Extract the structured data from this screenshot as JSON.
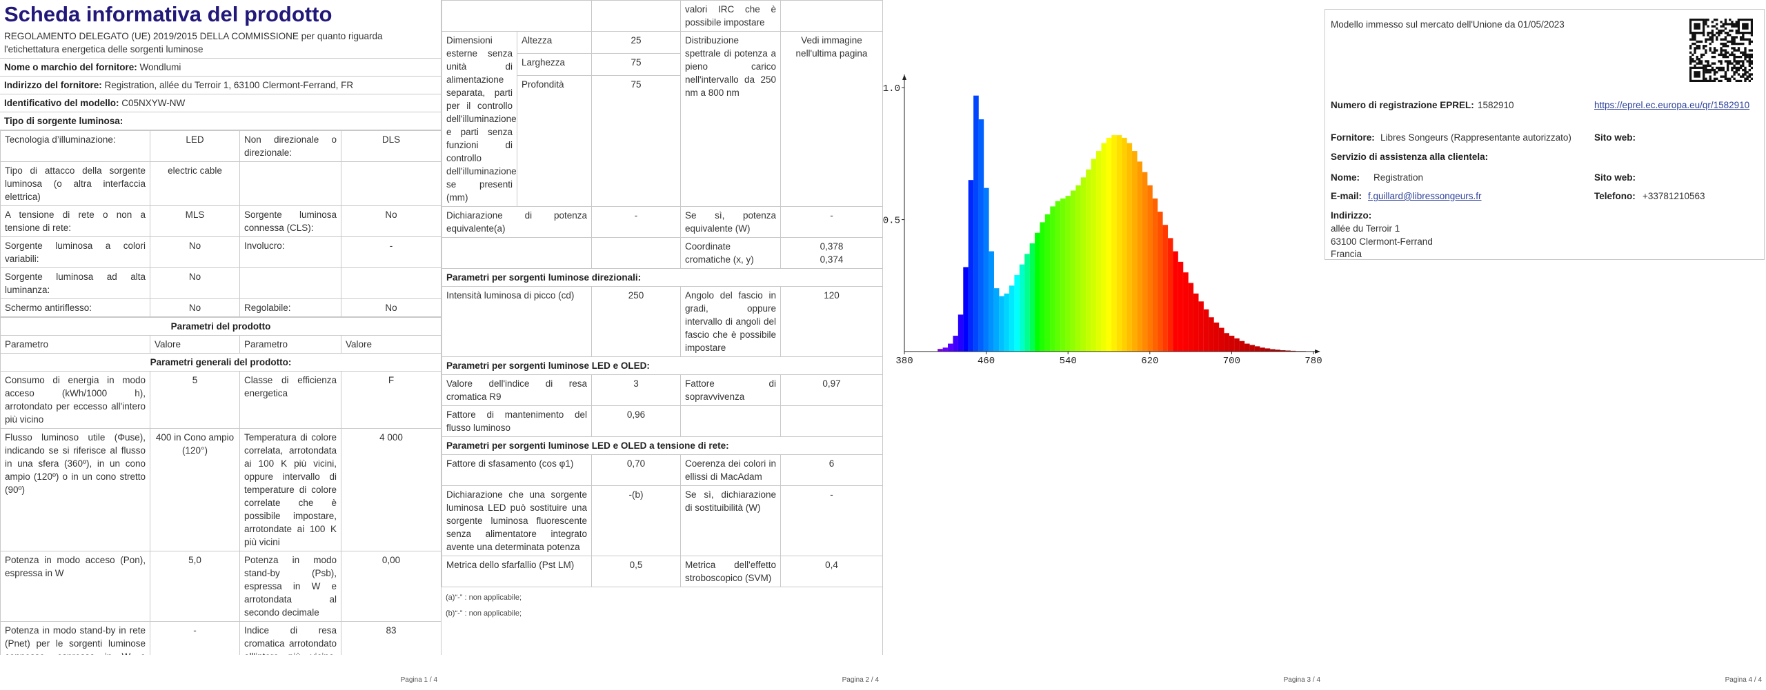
{
  "page1": {
    "title": "Scheda informativa del prodotto",
    "regulation": "REGOLAMENTO DELEGATO (UE) 2019/2015 DELLA COMMISSIONE per quanto riguarda l'etichettatura energetica delle sorgenti luminose",
    "supplier_label": "Nome o marchio del fornitore:",
    "supplier": "Wondlumi",
    "address_label": "Indirizzo del fornitore:",
    "address": "Registration, allée du Terroir 1, 63100 Clermont-Ferrand, FR",
    "model_label": "Identificativo del modello:",
    "model": "C05NXYW-NW",
    "source_type": "Tipo di sorgente luminosa:",
    "source_rows": [
      [
        "Tecnologia d’illuminazione:",
        "LED",
        "Non direzionale o direzionale:",
        "DLS"
      ],
      [
        "Tipo di attacco della sorgente luminosa (o altra interfaccia elettrica)",
        "electric cable"
      ],
      [
        "A tensione di rete o non a tensione di rete:",
        "MLS",
        "Sorgente luminosa connessa (CLS):",
        "No"
      ],
      [
        "Sorgente luminosa a colori variabili:",
        "No",
        "Involucro:",
        "-"
      ],
      [
        "Sorgente luminosa ad alta luminanza:",
        "No"
      ],
      [
        "Schermo antiriflesso:",
        "No",
        "Regolabile:",
        "No"
      ]
    ],
    "params_heading": "Parametri del prodotto",
    "col_headers": [
      "Parametro",
      "Valore",
      "Parametro",
      "Valore"
    ],
    "general_heading": "Parametri generali del prodotto:",
    "general_rows": [
      [
        "Consumo di energia in modo acceso (kWh/1000 h), arrotondato per eccesso all'intero più vicino",
        "5",
        "Classe di efficienza energetica",
        "F"
      ],
      [
        "Flusso luminoso utile (Φuse), indicando se si riferisce al flusso in una sfera (360º), in un cono ampio (120º) o in un cono stretto (90º)",
        "400 in Cono ampio (120°)",
        "Temperatura di colore correlata, arrotondata ai 100 K più vicini, oppure intervallo di temperature di colore correlate che è possibile impostare, arrotondate ai 100 K più vicini",
        "4 000"
      ],
      [
        "Potenza in modo acceso (Pon), espressa in W",
        "5,0",
        "Potenza in modo stand-by (Psb), espressa in W e arrotondata al secondo decimale",
        "0,00"
      ],
      [
        "Potenza in modo stand-by in rete (Pnet) per le sorgenti luminose connesse, espressa in W e arrotondata al secondo decimale",
        "-",
        "Indice di resa cromatica arrotondato all'intero più vicino, oppure intervallo di",
        "83"
      ]
    ],
    "page_number": "Pagina 1 / 4"
  },
  "page2": {
    "continuation": "valori IRC che è possibile impostare",
    "dimensions_label": "Dimensioni esterne senza unità di alimentazione separata, parti per il controllo dell'illuminazione e parti senza funzioni di controllo dell'illuminazione, se presenti (mm)",
    "dimensions": [
      [
        "Altezza",
        "25"
      ],
      [
        "Larghezza",
        "75"
      ],
      [
        "Profondità",
        "75"
      ]
    ],
    "spectral_label": "Distribuzione spettrale di potenza a pieno carico nell'intervallo da 250 nm a 800 nm",
    "spectral_value": "Vedi immagine nell'ultima pagina",
    "equivalent": [
      "Dichiarazione di potenza equivalente(a)",
      "-",
      "Se sì, potenza equivalente (W)",
      "-"
    ],
    "chromaticity_label": "Coordinate cromatiche (x, y)",
    "chromaticity": [
      "0,378",
      "0,374"
    ],
    "directional_heading": "Parametri per sorgenti luminose direzionali:",
    "directional_rows": [
      [
        "Intensità luminosa di picco (cd)",
        "250",
        "Angolo del fascio in gradi, oppure intervallo di angoli del fascio che è possibile impostare",
        "120"
      ]
    ],
    "led_heading": "Parametri per sorgenti luminose LED e OLED:",
    "led_rows": [
      [
        "Valore dell'indice di resa cromatica R9",
        "3",
        "Fattore di sopravvivenza",
        "0,97"
      ],
      [
        "Fattore di mantenimento del flusso luminoso",
        "0,96"
      ]
    ],
    "mains_heading": "Parametri per sorgenti luminose LED e OLED a tensione di rete:",
    "mains_rows": [
      [
        "Fattore di sfasamento (cos φ1)",
        "0,70",
        "Coerenza dei colori in ellissi di MacAdam",
        "6"
      ],
      [
        "Dichiarazione che una sorgente luminosa LED può sostituire una sorgente luminosa fluorescente senza alimentatore integrato avente una determinata potenza",
        "-(b)",
        "Se sì, dichiarazione di sostituibilità (W)",
        "-"
      ],
      [
        "Metrica dello sfarfallio (Pst LM)",
        "0,5",
        "Metrica dell'effetto stroboscopico (SVM)",
        "0,4"
      ]
    ],
    "footnotes": [
      "(a)“-” : non applicabile;",
      "(b)“-” : non applicabile;"
    ],
    "page_number": "Pagina 2 / 4"
  },
  "page3": {
    "page_number": "Pagina 3 / 4"
  },
  "chart_data": {
    "type": "bar",
    "xlim": [
      380,
      780
    ],
    "ylim": [
      0,
      1.05
    ],
    "xticks": [
      380,
      460,
      540,
      620,
      700,
      780
    ],
    "yticks": [
      {
        "value": 0.5,
        "label": "0.5"
      },
      {
        "value": 1,
        "label": "1.0"
      }
    ],
    "x": [
      410,
      415,
      420,
      425,
      430,
      435,
      440,
      445,
      450,
      455,
      460,
      465,
      470,
      475,
      480,
      485,
      490,
      495,
      500,
      505,
      510,
      515,
      520,
      525,
      530,
      535,
      540,
      545,
      550,
      555,
      560,
      565,
      570,
      575,
      580,
      585,
      590,
      595,
      600,
      605,
      610,
      615,
      620,
      625,
      630,
      635,
      640,
      645,
      650,
      655,
      660,
      665,
      670,
      675,
      680,
      685,
      690,
      695,
      700,
      705,
      710,
      715,
      720,
      725,
      730,
      735,
      740,
      745,
      750,
      755,
      760,
      765,
      770,
      775,
      780
    ],
    "values": [
      0.0,
      0.01,
      0.015,
      0.03,
      0.06,
      0.14,
      0.32,
      0.65,
      0.97,
      0.88,
      0.62,
      0.38,
      0.24,
      0.21,
      0.22,
      0.25,
      0.29,
      0.33,
      0.37,
      0.41,
      0.45,
      0.49,
      0.52,
      0.55,
      0.57,
      0.58,
      0.59,
      0.61,
      0.63,
      0.66,
      0.69,
      0.73,
      0.76,
      0.79,
      0.81,
      0.82,
      0.82,
      0.81,
      0.79,
      0.76,
      0.72,
      0.68,
      0.63,
      0.58,
      0.53,
      0.48,
      0.43,
      0.38,
      0.34,
      0.3,
      0.26,
      0.22,
      0.19,
      0.16,
      0.13,
      0.11,
      0.09,
      0.07,
      0.06,
      0.05,
      0.04,
      0.03,
      0.025,
      0.02,
      0.015,
      0.012,
      0.009,
      0.007,
      0.005,
      0.004,
      0.003,
      0.002,
      0.002,
      0.001,
      0.001
    ]
  },
  "page4": {
    "market_date": "Modello immesso sul mercato dell'Unione da 01/05/2023",
    "eprel_label": "Numero di registrazione EPREL:",
    "eprel": "1582910",
    "eprel_link": "https://eprel.ec.europa.eu/qr/1582910",
    "supplier_label": "Fornitore:",
    "supplier": "Libres Songeurs (Rappresentante autorizzato)",
    "website_label": "Sito web:",
    "service_label": "Servizio di assistenza alla clientela:",
    "name_label": "Nome:",
    "name": "Registration",
    "website2_label": "Sito web:",
    "email_label": "E-mail:",
    "email": "f.guillard@libressongeurs.fr",
    "phone_label": "Telefono:",
    "phone": "+33781210563",
    "address_label": "Indirizzo:",
    "address": [
      "allée du Terroir 1",
      "63100 Clermont-Ferrand",
      "Francia"
    ],
    "page_number": "Pagina 4 / 4"
  }
}
